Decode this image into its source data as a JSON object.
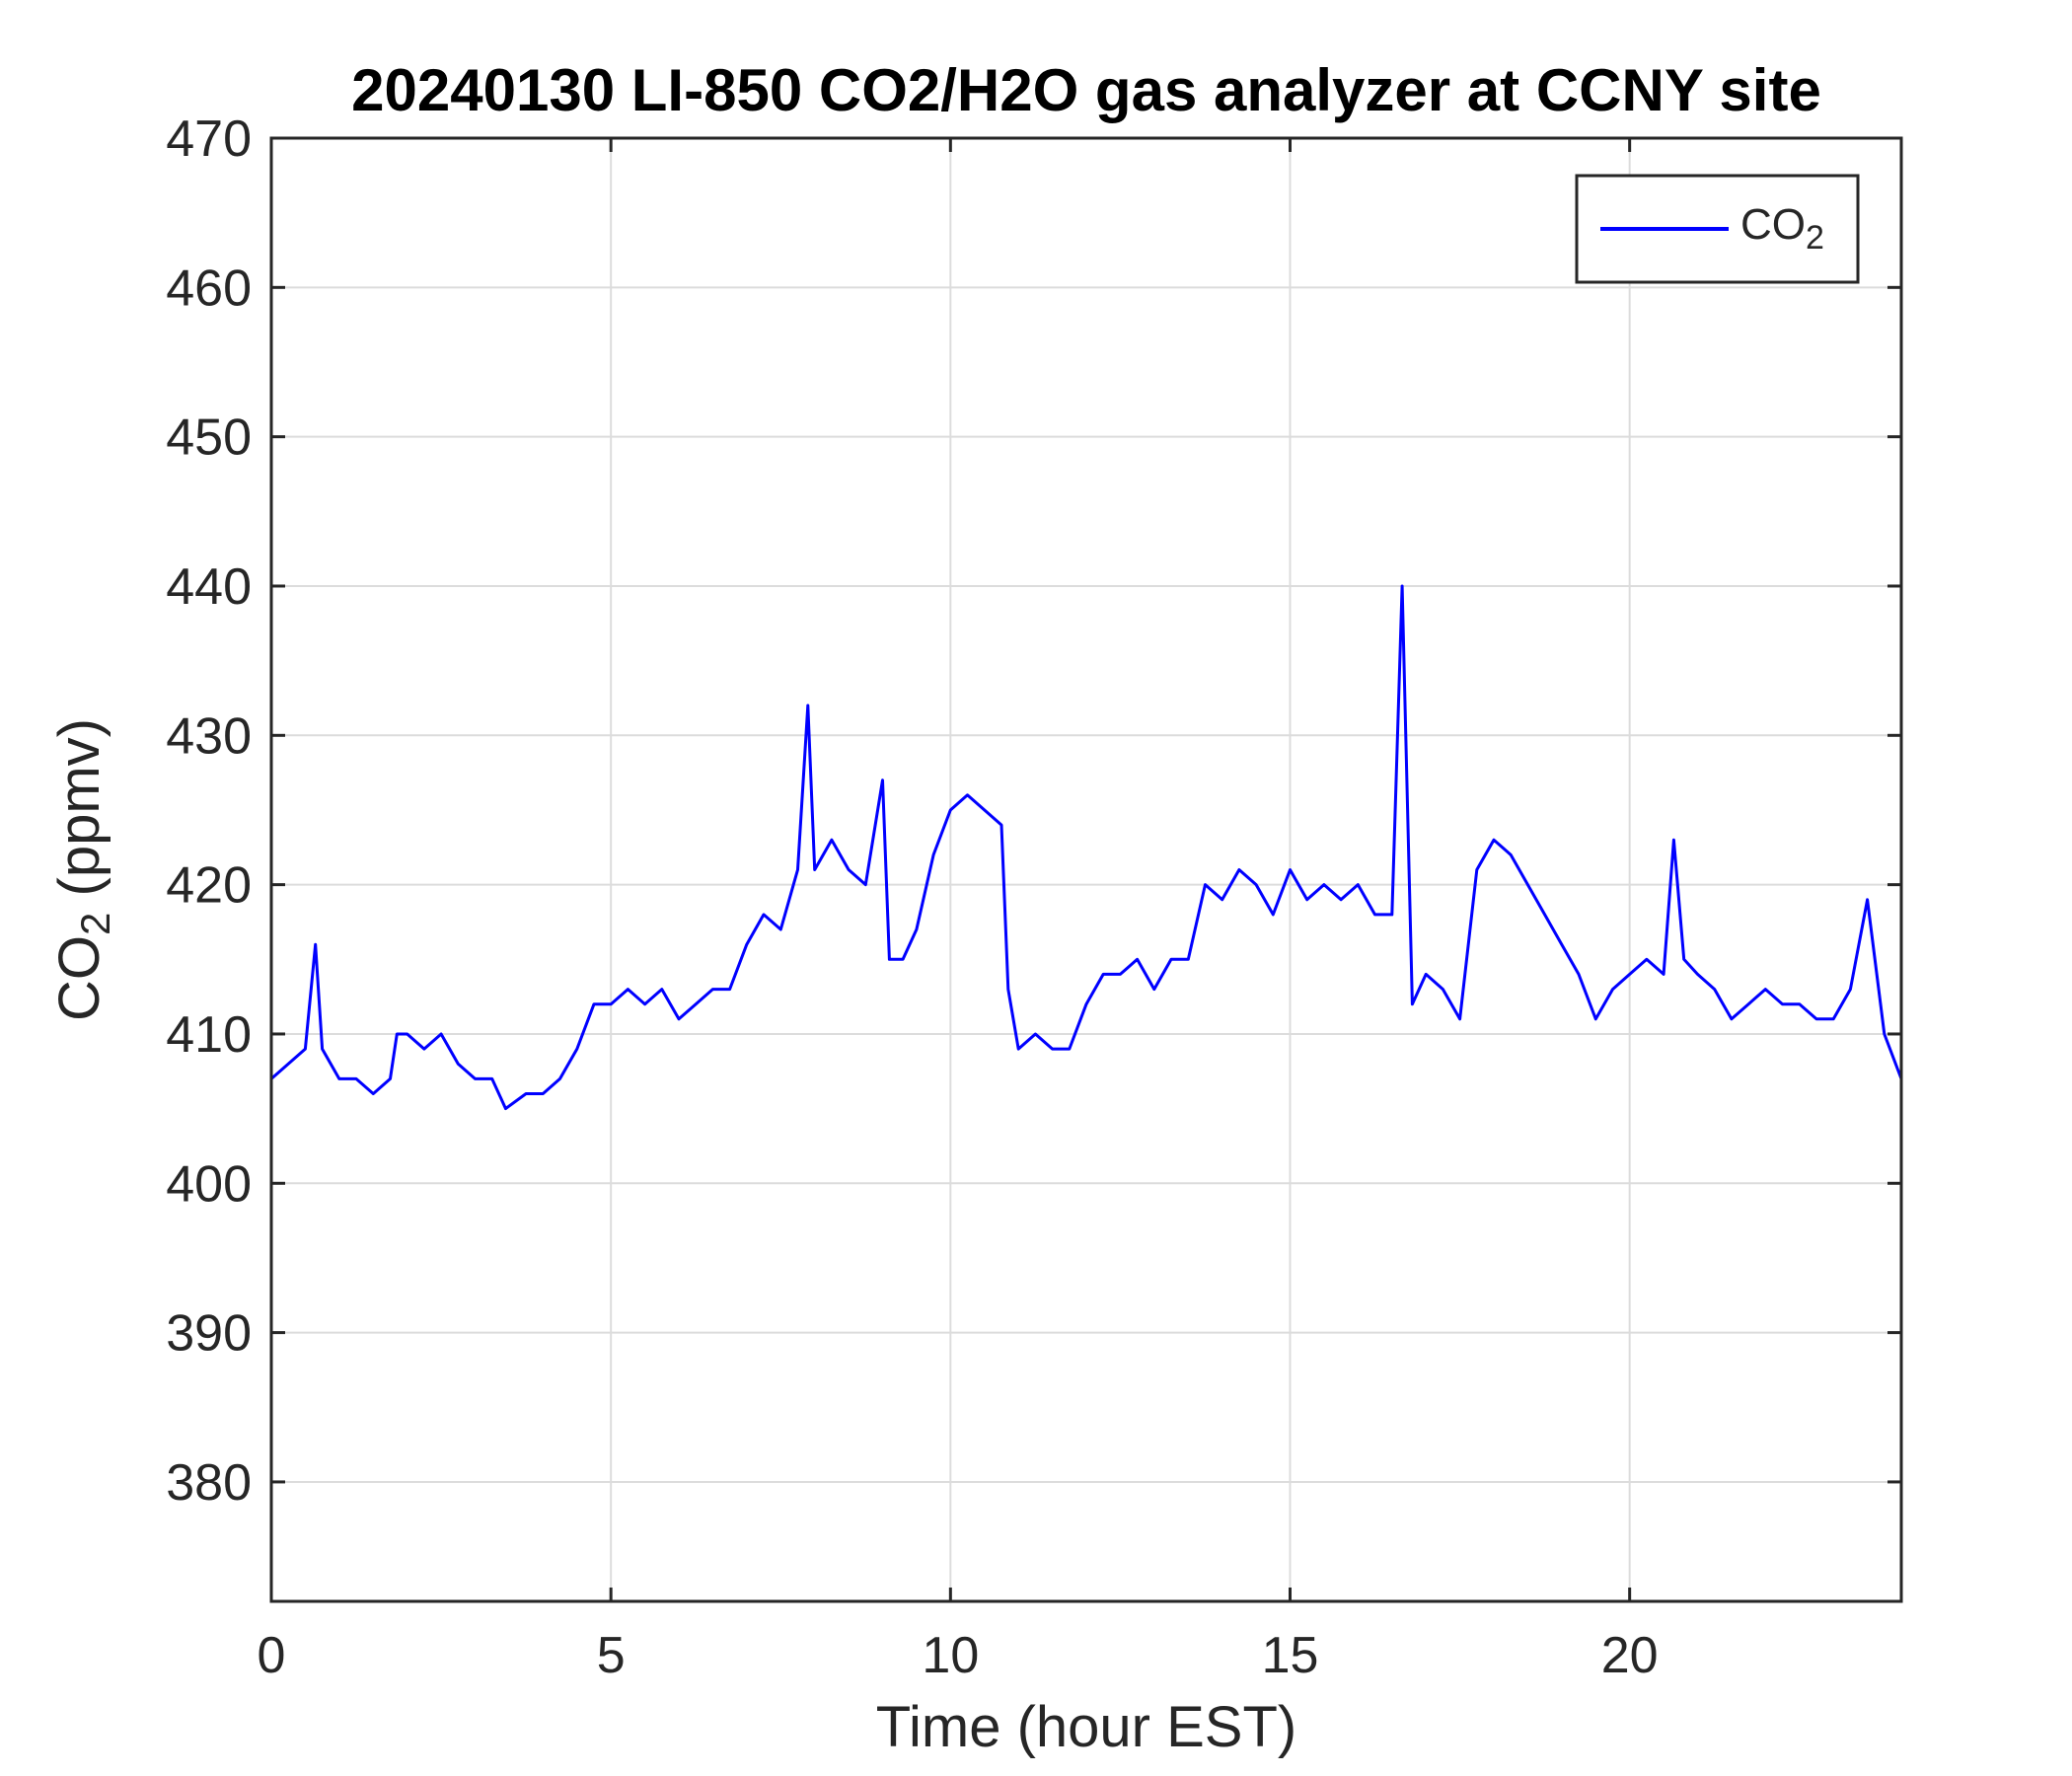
{
  "chart_data": {
    "type": "line",
    "title": "20240130 LI-850 CO2/H2O gas analyzer at CCNY site",
    "xlabel": "Time (hour EST)",
    "ylabel": {
      "prefix": "CO",
      "subscript": "2",
      "suffix": " (ppmv)"
    },
    "xlim": [
      0,
      24
    ],
    "ylim": [
      372,
      470
    ],
    "xticks": [
      0,
      5,
      10,
      15,
      20
    ],
    "yticks": [
      380,
      390,
      400,
      410,
      420,
      430,
      440,
      450,
      460,
      470
    ],
    "grid": true,
    "legend": {
      "placement": "top-right",
      "entries": [
        {
          "prefix": "CO",
          "subscript": "2"
        }
      ]
    },
    "series": [
      {
        "name": "CO2",
        "color": "#0000ff",
        "x": [
          0.0,
          0.25,
          0.5,
          0.65,
          0.75,
          1.0,
          1.25,
          1.5,
          1.75,
          1.85,
          2.0,
          2.25,
          2.5,
          2.75,
          3.0,
          3.25,
          3.45,
          3.75,
          4.0,
          4.25,
          4.5,
          4.75,
          5.0,
          5.25,
          5.5,
          5.75,
          6.0,
          6.25,
          6.5,
          6.75,
          7.0,
          7.25,
          7.5,
          7.75,
          7.9,
          8.0,
          8.25,
          8.5,
          8.75,
          9.0,
          9.1,
          9.3,
          9.5,
          9.75,
          10.0,
          10.25,
          10.5,
          10.75,
          10.85,
          11.0,
          11.25,
          11.5,
          11.75,
          12.0,
          12.25,
          12.5,
          12.75,
          13.0,
          13.25,
          13.5,
          13.75,
          14.0,
          14.25,
          14.5,
          14.75,
          15.0,
          15.25,
          15.5,
          15.75,
          16.0,
          16.25,
          16.5,
          16.65,
          16.8,
          17.0,
          17.25,
          17.5,
          17.75,
          18.0,
          18.25,
          18.5,
          18.75,
          19.0,
          19.25,
          19.5,
          19.75,
          20.0,
          20.25,
          20.5,
          20.65,
          20.8,
          21.0,
          21.25,
          21.5,
          21.75,
          22.0,
          22.25,
          22.5,
          22.75,
          23.0,
          23.25,
          23.5,
          23.75,
          24.0
        ],
        "y": [
          407,
          408,
          409,
          416,
          409,
          407,
          407,
          406,
          407,
          410,
          410,
          409,
          410,
          408,
          407,
          407,
          405,
          406,
          406,
          407,
          409,
          412,
          412,
          413,
          412,
          413,
          411,
          412,
          413,
          413,
          416,
          418,
          417,
          421,
          432,
          421,
          423,
          421,
          420,
          427,
          415,
          415,
          417,
          422,
          425,
          426,
          425,
          424,
          413,
          409,
          410,
          409,
          409,
          412,
          414,
          414,
          415,
          413,
          415,
          415,
          420,
          419,
          421,
          420,
          418,
          421,
          419,
          420,
          419,
          420,
          418,
          418,
          440,
          412,
          414,
          413,
          411,
          421,
          423,
          422,
          420,
          418,
          416,
          414,
          411,
          413,
          414,
          415,
          414,
          423,
          415,
          414,
          413,
          411,
          412,
          413,
          412,
          412,
          411,
          411,
          413,
          419,
          410,
          407
        ]
      }
    ]
  }
}
